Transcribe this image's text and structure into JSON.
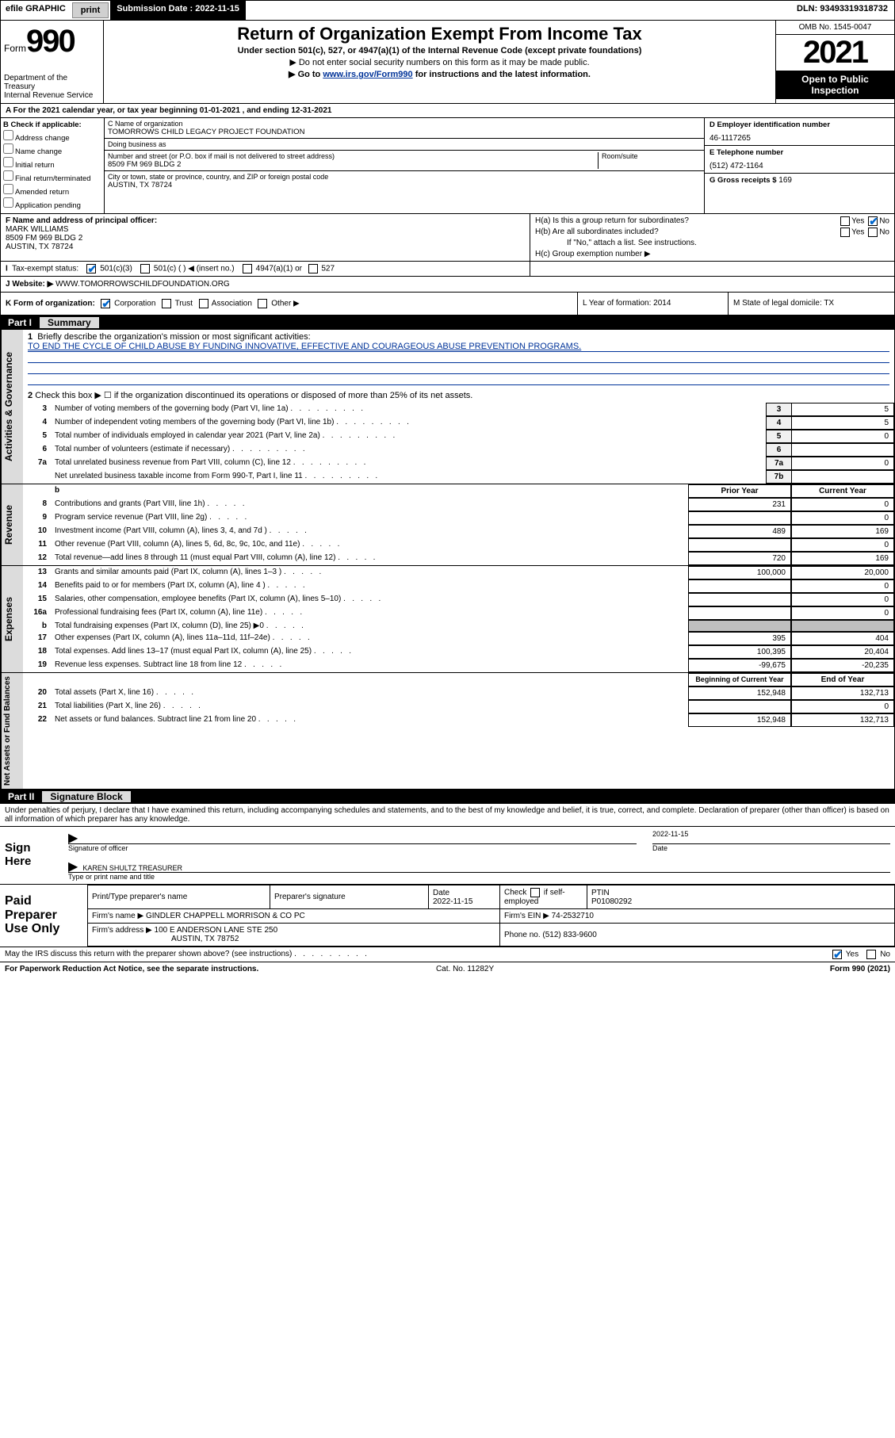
{
  "topbar": {
    "efile": "efile GRAPHIC",
    "print": "print",
    "sub_label": "Submission Date : 2022-11-15",
    "dln": "DLN: 93493319318732"
  },
  "header": {
    "form_label": "Form",
    "form_num": "990",
    "dept": "Department of the Treasury\nInternal Revenue Service",
    "title": "Return of Organization Exempt From Income Tax",
    "sub1": "Under section 501(c), 527, or 4947(a)(1) of the Internal Revenue Code (except private foundations)",
    "sub2": "▶ Do not enter social security numbers on this form as it may be made public.",
    "sub3_a": "▶ Go to ",
    "sub3_link": "www.irs.gov/Form990",
    "sub3_b": " for instructions and the latest information.",
    "omb": "OMB No. 1545-0047",
    "year": "2021",
    "open": "Open to Public Inspection"
  },
  "rowA": "A For the 2021 calendar year, or tax year beginning 01-01-2021   , and ending 12-31-2021",
  "boxB": {
    "label": "B Check if applicable:",
    "opts": [
      "Address change",
      "Name change",
      "Initial return",
      "Final return/terminated",
      "Amended return",
      "Application pending"
    ]
  },
  "boxC": {
    "name_lbl": "C Name of organization",
    "name": "TOMORROWS CHILD LEGACY PROJECT FOUNDATION",
    "dba_lbl": "Doing business as",
    "addr_lbl": "Number and street (or P.O. box if mail is not delivered to street address)",
    "addr": "8509 FM 969 BLDG 2",
    "room_lbl": "Room/suite",
    "city_lbl": "City or town, state or province, country, and ZIP or foreign postal code",
    "city": "AUSTIN, TX  78724"
  },
  "boxD": {
    "lbl": "D Employer identification number",
    "val": "46-1117265"
  },
  "boxE": {
    "lbl": "E Telephone number",
    "val": "(512) 472-1164"
  },
  "boxG": {
    "lbl": "G Gross receipts $",
    "val": "169"
  },
  "boxF": {
    "lbl": "F Name and address of principal officer:",
    "name": "MARK WILLIAMS",
    "addr": "8509 FM 969 BLDG 2\nAUSTIN, TX  78724"
  },
  "boxH": {
    "ha": "H(a)  Is this a group return for subordinates?",
    "hb": "H(b)  Are all subordinates included?",
    "hb_note": "If \"No,\" attach a list. See instructions.",
    "hc": "H(c)  Group exemption number ▶",
    "yes": "Yes",
    "no": "No"
  },
  "rowI": {
    "lbl": "I",
    "txt": "Tax-exempt status:",
    "o1": "501(c)(3)",
    "o2": "501(c) (  ) ◀ (insert no.)",
    "o3": "4947(a)(1) or",
    "o4": "527"
  },
  "rowJ": {
    "lbl": "J",
    "txt": "Website: ▶",
    "val": "WWW.TOMORROWSCHILDFOUNDATION.ORG"
  },
  "rowK": {
    "lbl": "K Form of organization:",
    "o1": "Corporation",
    "o2": "Trust",
    "o3": "Association",
    "o4": "Other ▶",
    "L": "L Year of formation: 2014",
    "M": "M State of legal domicile: TX"
  },
  "part1": {
    "num": "Part I",
    "title": "Summary"
  },
  "q1": {
    "num": "1",
    "txt": "Briefly describe the organization's mission or most significant activities:",
    "mission": "TO END THE CYCLE OF CHILD ABUSE BY FUNDING INNOVATIVE, EFFECTIVE AND COURAGEOUS ABUSE PREVENTION PROGRAMS."
  },
  "gov": {
    "label": "Activities & Governance",
    "q2": "Check this box ▶ ☐  if the organization discontinued its operations or disposed of more than 25% of its net assets.",
    "rows": [
      {
        "n": "3",
        "t": "Number of voting members of the governing body (Part VI, line 1a)",
        "c": "3",
        "v": "5"
      },
      {
        "n": "4",
        "t": "Number of independent voting members of the governing body (Part VI, line 1b)",
        "c": "4",
        "v": "5"
      },
      {
        "n": "5",
        "t": "Total number of individuals employed in calendar year 2021 (Part V, line 2a)",
        "c": "5",
        "v": "0"
      },
      {
        "n": "6",
        "t": "Total number of volunteers (estimate if necessary)",
        "c": "6",
        "v": ""
      },
      {
        "n": "7a",
        "t": "Total unrelated business revenue from Part VIII, column (C), line 12",
        "c": "7a",
        "v": "0"
      },
      {
        "n": "",
        "t": "Net unrelated business taxable income from Form 990-T, Part I, line 11",
        "c": "7b",
        "v": ""
      }
    ]
  },
  "rev": {
    "label": "Revenue",
    "hdr_prior": "Prior Year",
    "hdr_curr": "Current Year",
    "rows": [
      {
        "n": "8",
        "t": "Contributions and grants (Part VIII, line 1h)",
        "p": "231",
        "c": "0"
      },
      {
        "n": "9",
        "t": "Program service revenue (Part VIII, line 2g)",
        "p": "",
        "c": "0"
      },
      {
        "n": "10",
        "t": "Investment income (Part VIII, column (A), lines 3, 4, and 7d )",
        "p": "489",
        "c": "169"
      },
      {
        "n": "11",
        "t": "Other revenue (Part VIII, column (A), lines 5, 6d, 8c, 9c, 10c, and 11e)",
        "p": "",
        "c": "0"
      },
      {
        "n": "12",
        "t": "Total revenue—add lines 8 through 11 (must equal Part VIII, column (A), line 12)",
        "p": "720",
        "c": "169"
      }
    ]
  },
  "exp": {
    "label": "Expenses",
    "rows": [
      {
        "n": "13",
        "t": "Grants and similar amounts paid (Part IX, column (A), lines 1–3 )",
        "p": "100,000",
        "c": "20,000"
      },
      {
        "n": "14",
        "t": "Benefits paid to or for members (Part IX, column (A), line 4 )",
        "p": "",
        "c": "0"
      },
      {
        "n": "15",
        "t": "Salaries, other compensation, employee benefits (Part IX, column (A), lines 5–10)",
        "p": "",
        "c": "0"
      },
      {
        "n": "16a",
        "t": "Professional fundraising fees (Part IX, column (A), line 11e)",
        "p": "",
        "c": "0"
      },
      {
        "n": "b",
        "t": "Total fundraising expenses (Part IX, column (D), line 25) ▶0",
        "p": "grey",
        "c": "grey",
        "grey": true
      },
      {
        "n": "17",
        "t": "Other expenses (Part IX, column (A), lines 11a–11d, 11f–24e)",
        "p": "395",
        "c": "404"
      },
      {
        "n": "18",
        "t": "Total expenses. Add lines 13–17 (must equal Part IX, column (A), line 25)",
        "p": "100,395",
        "c": "20,404"
      },
      {
        "n": "19",
        "t": "Revenue less expenses. Subtract line 18 from line 12",
        "p": "-99,675",
        "c": "-20,235"
      }
    ]
  },
  "net": {
    "label": "Net Assets or Fund Balances",
    "hdr_beg": "Beginning of Current Year",
    "hdr_end": "End of Year",
    "rows": [
      {
        "n": "20",
        "t": "Total assets (Part X, line 16)",
        "p": "152,948",
        "c": "132,713"
      },
      {
        "n": "21",
        "t": "Total liabilities (Part X, line 26)",
        "p": "",
        "c": "0"
      },
      {
        "n": "22",
        "t": "Net assets or fund balances. Subtract line 21 from line 20",
        "p": "152,948",
        "c": "132,713"
      }
    ]
  },
  "part2": {
    "num": "Part II",
    "title": "Signature Block"
  },
  "decl": "Under penalties of perjury, I declare that I have examined this return, including accompanying schedules and statements, and to the best of my knowledge and belief, it is true, correct, and complete. Declaration of preparer (other than officer) is based on all information of which preparer has any knowledge.",
  "sign": {
    "lbl": "Sign Here",
    "sig_lbl": "Signature of officer",
    "date": "2022-11-15",
    "date_lbl": "Date",
    "name": "KAREN SHULTZ  TREASURER",
    "name_lbl": "Type or print name and title"
  },
  "paid": {
    "lbl": "Paid Preparer Use Only",
    "h1": "Print/Type preparer's name",
    "h2": "Preparer's signature",
    "h3": "Date",
    "h3v": "2022-11-15",
    "h4a": "Check",
    "h4b": "if self-employed",
    "h5": "PTIN",
    "h5v": "P01080292",
    "firm_lbl": "Firm's name    ▶",
    "firm": "GINDLER CHAPPELL MORRISON & CO PC",
    "ein_lbl": "Firm's EIN ▶",
    "ein": "74-2532710",
    "addr_lbl": "Firm's address ▶",
    "addr": "100 E ANDERSON LANE STE 250",
    "addr2": "AUSTIN, TX  78752",
    "phone_lbl": "Phone no.",
    "phone": "(512) 833-9600"
  },
  "discuss": {
    "txt": "May the IRS discuss this return with the preparer shown above? (see instructions)",
    "yes": "Yes",
    "no": "No"
  },
  "footer": {
    "paperwork": "For Paperwork Reduction Act Notice, see the separate instructions.",
    "cat": "Cat. No. 11282Y",
    "form": "Form 990 (2021)"
  }
}
